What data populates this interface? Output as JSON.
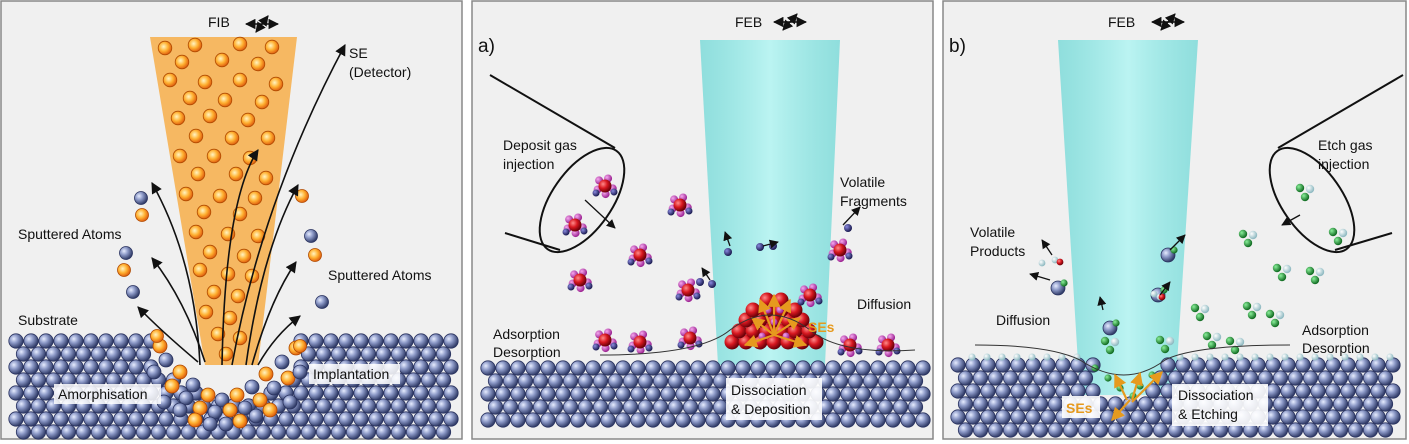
{
  "panels": [
    {
      "beam_label": "FIB",
      "labels": {
        "se_line1": "SE",
        "se_line2": "(Detector)",
        "sputtered_left": "Sputtered Atoms",
        "sputtered_right": "Sputtered Atoms",
        "substrate": "Substrate",
        "amorphisation": "Amorphisation",
        "implantation": "Implantation"
      }
    },
    {
      "panel_letter": "a)",
      "beam_label": "FEB",
      "labels": {
        "gas_line1": "Deposit gas",
        "gas_line2": "injection",
        "volatile_line1": "Volatile",
        "volatile_line2": "Fragments",
        "diffusion": "Diffusion",
        "ses": "SEs",
        "ads_line1": "Adsorption",
        "ads_line2": "Desorption",
        "diss_line1": "Dissociation",
        "diss_line2": "& Deposition"
      }
    },
    {
      "panel_letter": "b)",
      "beam_label": "FEB",
      "labels": {
        "gas_line1": "Etch gas",
        "gas_line2": "injection",
        "volatile_line1": "Volatile",
        "volatile_line2": "Products",
        "diffusion": "Diffusion",
        "ses": "SEs",
        "ads_line1": "Adsorption",
        "ads_line2": "Desorption",
        "diss_line1": "Dissociation",
        "diss_line2": "& Etching"
      }
    }
  ],
  "colors": {
    "panel_bg": "#f0f0f0",
    "atom": "#6a78a8",
    "ion": "#f0a030",
    "fib_beam": "#f5b45a",
    "feb_beam": "#7fe0dc",
    "deposit_red": "#c8141e",
    "deposit_magenta": "#c040b0",
    "deposit_navy": "#2a2a70",
    "etch_green": "#1a8a30",
    "etch_light": "#b9dde0",
    "ses_orange": "#e69a1e"
  }
}
